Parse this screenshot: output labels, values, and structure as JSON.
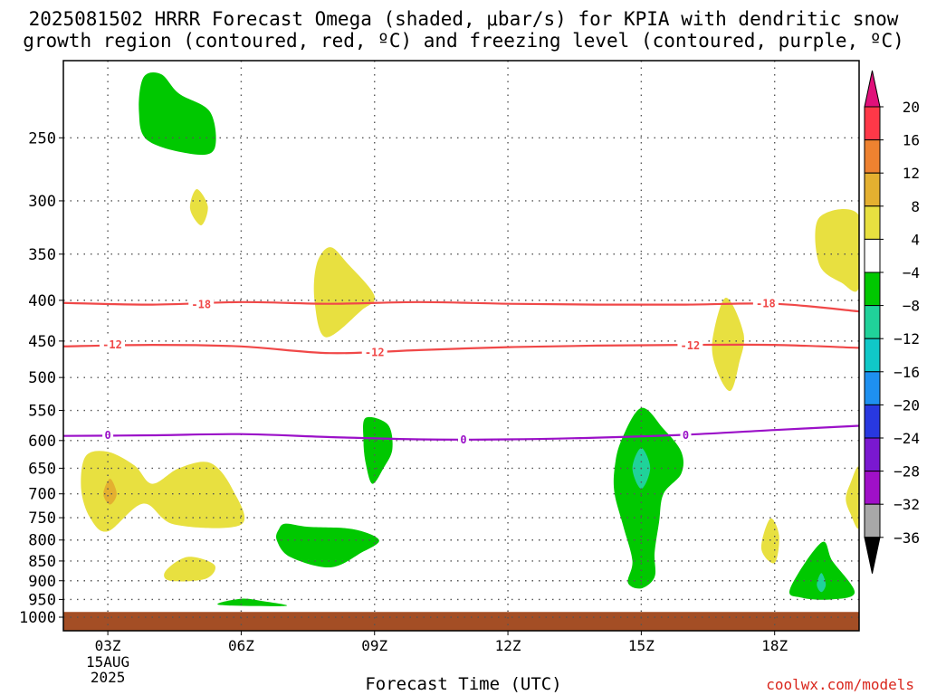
{
  "title_line1": "2025081502 HRRR Forecast Omega (shaded, μbar/s) for KPIA with dendritic snow",
  "title_line2": "growth region (contoured, red, ºC) and freezing level (contoured, purple, ºC)",
  "xlabel": "Forecast Time (UTC)",
  "credit": "coolwx.com/models",
  "chart_data": {
    "type": "time-height contour",
    "x_ticks": [
      "03Z",
      "06Z",
      "09Z",
      "12Z",
      "15Z",
      "18Z"
    ],
    "x_tick_hours": [
      3,
      6,
      9,
      12,
      15,
      18
    ],
    "x_range_hours": [
      2,
      19.9
    ],
    "x_date_sub": [
      "15AUG",
      "2025"
    ],
    "y_ticks": [
      250,
      300,
      350,
      400,
      450,
      500,
      550,
      600,
      650,
      700,
      750,
      800,
      850,
      900,
      950,
      1000
    ],
    "y_range_hpa": [
      200,
      1040
    ],
    "y_scale": "log-pressure (inverted)",
    "grid": true,
    "colorbar": {
      "labels": [
        "20",
        "16",
        "12",
        "8",
        "4",
        "−4",
        "−8",
        "−12",
        "−16",
        "−20",
        "−24",
        "−28",
        "−32",
        "−36"
      ],
      "bins": [
        {
          "color": "#ff3848",
          "range": [
            16,
            20
          ]
        },
        {
          "color": "#ee8230",
          "range": [
            12,
            16
          ]
        },
        {
          "color": "#e4b030",
          "range": [
            8,
            12
          ]
        },
        {
          "color": "#e8e040",
          "range": [
            4,
            8
          ]
        },
        {
          "color": "#ffffff",
          "range": [
            -4,
            4
          ]
        },
        {
          "color": "#00c800",
          "range": [
            -8,
            -4
          ]
        },
        {
          "color": "#20d29a",
          "range": [
            -12,
            -8
          ]
        },
        {
          "color": "#10c8c8",
          "range": [
            -16,
            -12
          ]
        },
        {
          "color": "#1e90f0",
          "range": [
            -20,
            -16
          ]
        },
        {
          "color": "#2838e0",
          "range": [
            -24,
            -20
          ]
        },
        {
          "color": "#7a18d0",
          "range": [
            -28,
            -24
          ]
        },
        {
          "color": "#a010c8",
          "range": [
            -32,
            -28
          ]
        },
        {
          "color": "#a8a8a8",
          "range": [
            -36,
            -32
          ]
        }
      ],
      "top_arrow_color": "#e0107a",
      "bottom_arrow_color": "#000000"
    },
    "contours": [
      {
        "name": "-18",
        "color": "#f04848",
        "points": [
          [
            2,
            403
          ],
          [
            4,
            405
          ],
          [
            6,
            402
          ],
          [
            8,
            404
          ],
          [
            10,
            402
          ],
          [
            12,
            404
          ],
          [
            14,
            405
          ],
          [
            16,
            405
          ],
          [
            18,
            404
          ],
          [
            19.9,
            413
          ]
        ],
        "labels": [
          {
            "text": "-18",
            "x": 5.1,
            "y": 405
          },
          {
            "text": "-18",
            "x": 17.8,
            "y": 404
          }
        ]
      },
      {
        "name": "-12",
        "color": "#f04848",
        "points": [
          [
            2,
            457
          ],
          [
            4,
            455
          ],
          [
            6,
            457
          ],
          [
            8,
            466
          ],
          [
            10,
            462
          ],
          [
            12,
            458
          ],
          [
            14,
            456
          ],
          [
            16,
            455
          ],
          [
            18,
            455
          ],
          [
            19.9,
            459
          ]
        ],
        "labels": [
          {
            "text": "-12",
            "x": 3.1,
            "y": 455
          },
          {
            "text": "-12",
            "x": 9.0,
            "y": 465
          },
          {
            "text": "-12",
            "x": 16.1,
            "y": 456
          }
        ]
      },
      {
        "name": "0",
        "color": "#9b10c8",
        "points": [
          [
            2,
            592
          ],
          [
            4,
            591
          ],
          [
            6,
            589
          ],
          [
            8,
            594
          ],
          [
            10,
            598
          ],
          [
            12,
            598
          ],
          [
            14,
            595
          ],
          [
            16,
            590
          ],
          [
            18,
            582
          ],
          [
            19.9,
            575
          ]
        ],
        "labels": [
          {
            "text": "0",
            "x": 3.0,
            "y": 591
          },
          {
            "text": "0",
            "x": 11.0,
            "y": 599
          },
          {
            "text": "0",
            "x": 16.0,
            "y": 591
          }
        ]
      }
    ],
    "shaded": [
      {
        "value": "-4 to -8",
        "color": "#00c800",
        "points": [
          [
            3.8,
            210
          ],
          [
            4.2,
            208
          ],
          [
            4.6,
            220
          ],
          [
            5.3,
            232
          ],
          [
            5.4,
            258
          ],
          [
            4.9,
            262
          ],
          [
            3.9,
            252
          ],
          [
            3.7,
            232
          ]
        ]
      },
      {
        "value": "4 to 8",
        "color": "#e8e040",
        "points": [
          [
            5.0,
            290
          ],
          [
            5.25,
            305
          ],
          [
            5.1,
            322
          ],
          [
            4.85,
            307
          ]
        ]
      },
      {
        "value": "4 to 8",
        "color": "#e8e040",
        "points": [
          [
            8.0,
            343
          ],
          [
            8.4,
            360
          ],
          [
            9.0,
            395
          ],
          [
            8.7,
            412
          ],
          [
            7.9,
            445
          ],
          [
            7.65,
            400
          ],
          [
            7.7,
            360
          ]
        ]
      },
      {
        "value": "4 to 8",
        "color": "#e8e040",
        "points": [
          [
            19.0,
            315
          ],
          [
            19.9,
            313
          ],
          [
            19.9,
            385
          ],
          [
            19.5,
            380
          ],
          [
            19.0,
            360
          ]
        ]
      },
      {
        "value": "4 to 8",
        "color": "#e8e040",
        "points": [
          [
            16.9,
            397
          ],
          [
            17.3,
            440
          ],
          [
            17.2,
            480
          ],
          [
            17.0,
            520
          ],
          [
            16.7,
            490
          ],
          [
            16.6,
            450
          ]
        ]
      },
      {
        "value": "-4 to -8",
        "color": "#00c800",
        "points": [
          [
            8.8,
            562
          ],
          [
            9.3,
            573
          ],
          [
            9.4,
            615
          ],
          [
            9.2,
            650
          ],
          [
            8.95,
            680
          ],
          [
            8.8,
            640
          ],
          [
            8.75,
            600
          ]
        ]
      },
      {
        "value": "-4 to -8",
        "color": "#00c800",
        "points": [
          [
            15.0,
            546
          ],
          [
            15.5,
            580
          ],
          [
            15.9,
            620
          ],
          [
            15.9,
            660
          ],
          [
            15.5,
            700
          ],
          [
            15.4,
            760
          ],
          [
            15.3,
            830
          ],
          [
            15.3,
            890
          ],
          [
            15.0,
            920
          ],
          [
            14.7,
            905
          ],
          [
            14.8,
            850
          ],
          [
            14.6,
            770
          ],
          [
            14.4,
            700
          ],
          [
            14.4,
            650
          ],
          [
            14.55,
            600
          ]
        ]
      },
      {
        "value": "-8 to -12",
        "color": "#20d29a",
        "points": [
          [
            15.0,
            613
          ],
          [
            15.2,
            650
          ],
          [
            15.0,
            690
          ],
          [
            14.8,
            650
          ]
        ]
      },
      {
        "value": "4 to 8",
        "color": "#e8e040",
        "points": [
          [
            2.5,
            628
          ],
          [
            3.0,
            620
          ],
          [
            3.6,
            645
          ],
          [
            4.0,
            680
          ],
          [
            4.6,
            650
          ],
          [
            5.3,
            640
          ],
          [
            5.8,
            690
          ],
          [
            6.0,
            765
          ],
          [
            4.5,
            765
          ],
          [
            3.8,
            720
          ],
          [
            3.0,
            780
          ],
          [
            2.6,
            750
          ],
          [
            2.4,
            690
          ]
        ]
      },
      {
        "value": "8 to 12",
        "color": "#e4b030",
        "points": [
          [
            3.05,
            670
          ],
          [
            3.2,
            700
          ],
          [
            3.05,
            722
          ],
          [
            2.9,
            700
          ]
        ]
      },
      {
        "value": "4 to 8",
        "color": "#e8e040",
        "points": [
          [
            19.7,
            680
          ],
          [
            19.9,
            650
          ],
          [
            19.9,
            770
          ],
          [
            19.7,
            740
          ],
          [
            19.6,
            710
          ]
        ]
      },
      {
        "value": "-4 to -8",
        "color": "#00c800",
        "points": [
          [
            7.0,
            763
          ],
          [
            7.5,
            770
          ],
          [
            8.5,
            775
          ],
          [
            9.1,
            800
          ],
          [
            8.7,
            830
          ],
          [
            8.0,
            866
          ],
          [
            7.1,
            840
          ],
          [
            6.8,
            800
          ],
          [
            6.85,
            775
          ]
        ]
      },
      {
        "value": "4 to 8",
        "color": "#e8e040",
        "points": [
          [
            17.9,
            752
          ],
          [
            18.1,
            790
          ],
          [
            18.0,
            855
          ],
          [
            17.7,
            820
          ]
        ]
      },
      {
        "value": "4 to 8",
        "color": "#e8e040",
        "points": [
          [
            4.3,
            875
          ],
          [
            4.8,
            840
          ],
          [
            5.4,
            860
          ],
          [
            5.2,
            895
          ],
          [
            4.4,
            900
          ]
        ]
      },
      {
        "value": "-4 to -8",
        "color": "#00c800",
        "points": [
          [
            19.05,
            806
          ],
          [
            19.3,
            850
          ],
          [
            19.8,
            930
          ],
          [
            19.3,
            950
          ],
          [
            18.6,
            945
          ],
          [
            18.35,
            920
          ]
        ]
      },
      {
        "value": "-8 to -12",
        "color": "#20d29a",
        "points": [
          [
            19.05,
            880
          ],
          [
            19.15,
            910
          ],
          [
            19.05,
            930
          ],
          [
            18.95,
            910
          ]
        ]
      },
      {
        "value": "-4 to -8",
        "color": "#00c800",
        "points": [
          [
            5.5,
            965
          ],
          [
            6.0,
            948
          ],
          [
            6.5,
            955
          ],
          [
            7.0,
            968
          ]
        ]
      }
    ],
    "ground": {
      "color": "#a44e25",
      "from_hpa": 985,
      "to_hpa": 1040
    }
  }
}
